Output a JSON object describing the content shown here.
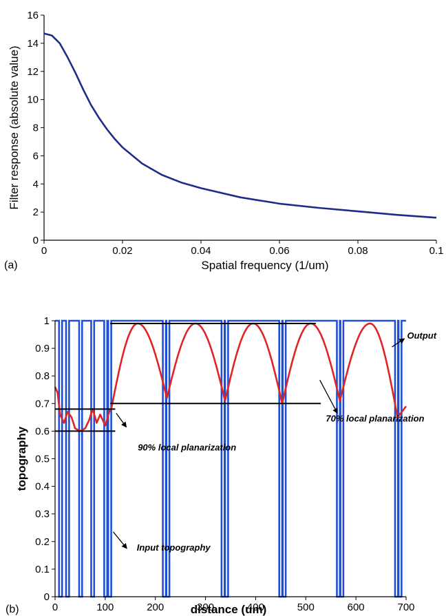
{
  "chart_data": [
    {
      "type": "line",
      "panel_label": "(a)",
      "xlabel": "Spatial frequency (1/um)",
      "ylabel": "Filter response (absolute value)",
      "xlim": [
        0,
        0.1
      ],
      "ylim": [
        0,
        16
      ],
      "xticks": [
        "0",
        "0.02",
        "0.04",
        "0.06",
        "0.08",
        "0.1"
      ],
      "yticks": [
        "0",
        "2",
        "4",
        "6",
        "8",
        "10",
        "12",
        "14",
        "16"
      ],
      "grid": false,
      "series": [
        {
          "color": "#1f2b8a",
          "x": [
            0,
            0.002,
            0.004,
            0.006,
            0.008,
            0.01,
            0.012,
            0.014,
            0.016,
            0.018,
            0.02,
            0.025,
            0.03,
            0.035,
            0.04,
            0.05,
            0.06,
            0.07,
            0.08,
            0.09,
            0.1
          ],
          "y": [
            14.7,
            14.55,
            14.0,
            13.0,
            11.9,
            10.7,
            9.6,
            8.7,
            7.9,
            7.2,
            6.6,
            5.45,
            4.65,
            4.1,
            3.7,
            3.05,
            2.6,
            2.3,
            2.05,
            1.8,
            1.6
          ]
        }
      ]
    },
    {
      "type": "line",
      "panel_label": "(b)",
      "xlabel": "distance (um)",
      "ylabel": "topography",
      "xlim": [
        0,
        700
      ],
      "ylim": [
        0,
        1
      ],
      "xticks": [
        "0",
        "100",
        "200",
        "300",
        "400",
        "500",
        "600",
        "700"
      ],
      "yticks": [
        "0",
        "0.1",
        "0.2",
        "0.3",
        "0.4",
        "0.5",
        "0.6",
        "0.7",
        "0.8",
        "0.9",
        "1"
      ],
      "grid": false,
      "series": [
        {
          "role": "input",
          "color": "#1f4fd6",
          "dense_trenches": [
            [
              8,
              14
            ],
            [
              22,
              28
            ],
            [
              48,
              54
            ],
            [
              72,
              78
            ],
            [
              98,
              104
            ],
            [
              106,
              112
            ]
          ],
          "wide_trenches": [
            [
              215,
              221
            ],
            [
              222,
              228
            ],
            [
              332,
              338
            ],
            [
              339,
              345
            ],
            [
              447,
              453
            ],
            [
              454,
              460
            ],
            [
              562,
              568
            ],
            [
              569,
              575
            ],
            [
              678,
              684
            ],
            [
              685,
              691
            ]
          ]
        },
        {
          "role": "output",
          "color": "#e02424",
          "dense_region": {
            "x": [
              0,
              5,
              10,
              18,
              25,
              33,
              40,
              50,
              60,
              68,
              75,
              83,
              90,
              100,
              108,
              112
            ],
            "y": [
              0.76,
              0.74,
              0.66,
              0.63,
              0.67,
              0.65,
              0.61,
              0.6,
              0.61,
              0.64,
              0.68,
              0.63,
              0.66,
              0.62,
              0.67,
              0.68
            ]
          },
          "wide_peaks": [
            [
              165,
              0.99
            ],
            [
              280,
              0.99
            ],
            [
              395,
              0.99
            ],
            [
              510,
              0.99
            ],
            [
              628,
              0.99
            ]
          ],
          "wide_dips": [
            [
              223,
              0.72
            ],
            [
              339,
              0.71
            ],
            [
              453,
              0.7
            ],
            [
              568,
              0.71
            ],
            [
              683,
              0.65
            ]
          ],
          "end_point": [
            700,
            0.69
          ]
        }
      ],
      "reference_lines": [
        {
          "y": 0.99,
          "x": [
            110,
            520
          ]
        },
        {
          "y": 0.7,
          "x": [
            110,
            530
          ]
        },
        {
          "y": 0.68,
          "x": [
            0,
            120
          ]
        },
        {
          "y": 0.6,
          "x": [
            0,
            120
          ]
        }
      ],
      "annotations": [
        {
          "text": "Output",
          "x": 702,
          "y": 0.94
        },
        {
          "text": "70% local planarization",
          "x": 540,
          "y": 0.635
        },
        {
          "text": "90% local planarization",
          "x": 165,
          "y": 0.53
        },
        {
          "text": "Input topography",
          "x": 163,
          "y": 0.167
        }
      ]
    }
  ]
}
